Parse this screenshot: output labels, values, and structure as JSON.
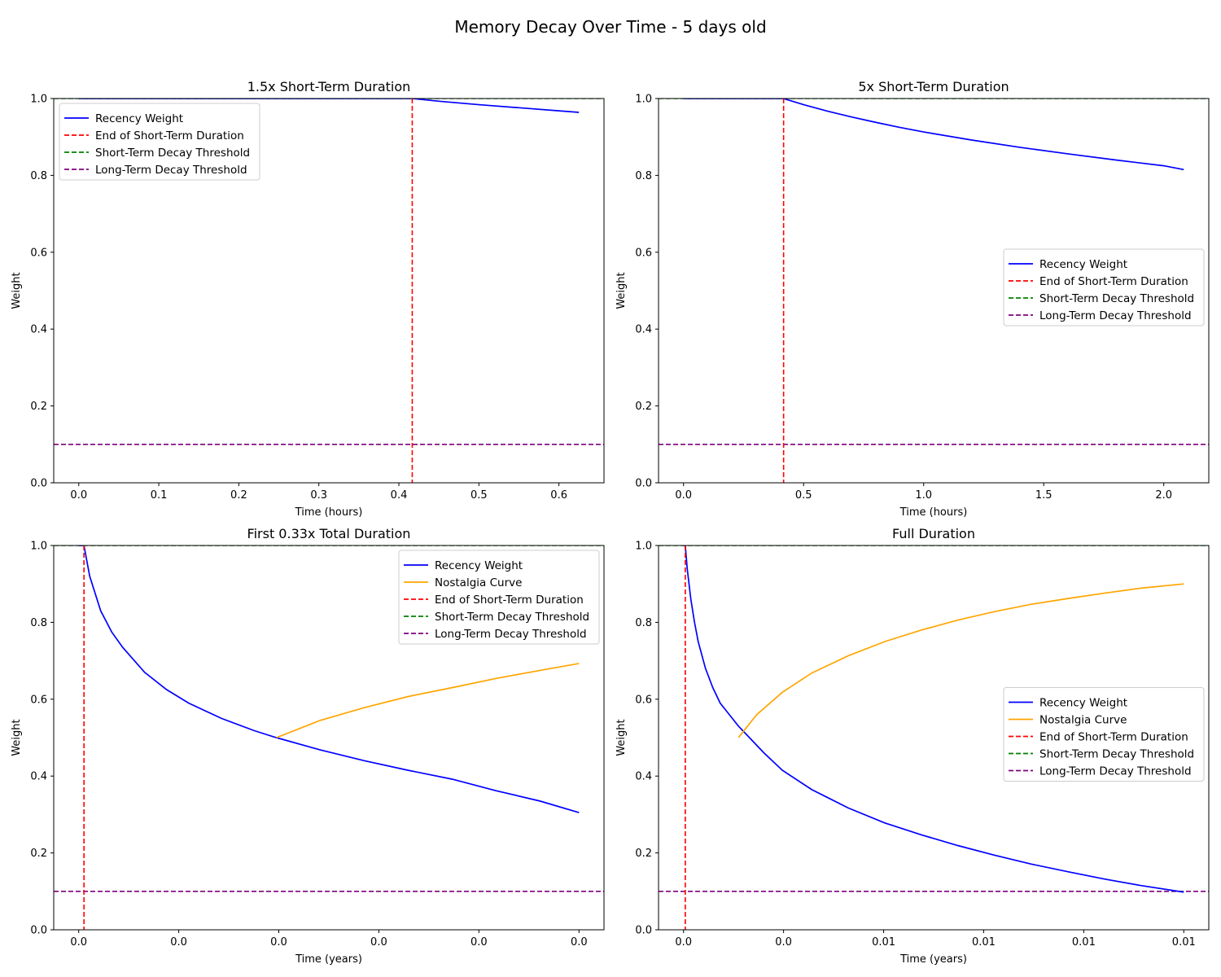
{
  "figure": {
    "title": "Memory Decay Over Time - 5 days old"
  },
  "chart_data": [
    {
      "type": "line",
      "title": "1.5x Short-Term Duration",
      "xlabel": "Time (hours)",
      "ylabel": "Weight",
      "xlim": [
        -0.0313,
        0.6563
      ],
      "ylim": [
        0,
        1
      ],
      "xticks": [
        0,
        0.1,
        0.2,
        0.3,
        0.4,
        0.5,
        0.6
      ],
      "xtick_labels": [
        "0.0",
        "0.1",
        "0.2",
        "0.3",
        "0.4",
        "0.5",
        "0.6"
      ],
      "yticks": [
        0,
        0.2,
        0.4,
        0.6,
        0.8,
        1.0
      ],
      "ytick_labels": [
        "0.0",
        "0.2",
        "0.4",
        "0.6",
        "0.8",
        "1.0"
      ],
      "grid": false,
      "legend_position": "top-left",
      "legend": [
        "Recency Weight",
        "End of Short-Term Duration",
        "Short-Term Decay Threshold",
        "Long-Term Decay Threshold"
      ],
      "series": [
        {
          "name": "Recency Weight",
          "color": "#0000ff",
          "style": "solid",
          "x": [
            0,
            0.1,
            0.2,
            0.3,
            0.4167,
            0.45,
            0.5,
            0.55,
            0.6,
            0.625
          ],
          "y": [
            1,
            1,
            1,
            1,
            1,
            0.993,
            0.984,
            0.976,
            0.968,
            0.964
          ]
        }
      ],
      "vlines": [
        {
          "name": "End of Short-Term Duration",
          "x": 0.4167,
          "color": "#ff0000"
        }
      ],
      "hlines": [
        {
          "name": "Short-Term Decay Threshold",
          "y": 1.0,
          "color": "#008000"
        },
        {
          "name": "Long-Term Decay Threshold",
          "y": 0.1,
          "color": "#800080"
        }
      ]
    },
    {
      "type": "line",
      "title": "5x Short-Term Duration",
      "xlabel": "Time (hours)",
      "ylabel": "Weight",
      "xlim": [
        -0.1042,
        2.1875
      ],
      "ylim": [
        0,
        1
      ],
      "xticks": [
        0,
        0.5,
        1.0,
        1.5,
        2.0
      ],
      "xtick_labels": [
        "0.0",
        "0.5",
        "1.0",
        "1.5",
        "2.0"
      ],
      "yticks": [
        0,
        0.2,
        0.4,
        0.6,
        0.8,
        1.0
      ],
      "ytick_labels": [
        "0.0",
        "0.2",
        "0.4",
        "0.6",
        "0.8",
        "1.0"
      ],
      "grid": false,
      "legend_position": "center-right",
      "legend": [
        "Recency Weight",
        "End of Short-Term Duration",
        "Short-Term Decay Threshold",
        "Long-Term Decay Threshold"
      ],
      "series": [
        {
          "name": "Recency Weight",
          "color": "#0000ff",
          "style": "solid",
          "x": [
            0,
            0.2,
            0.4167,
            0.5,
            0.6,
            0.7,
            0.8,
            0.9,
            1.0,
            1.2,
            1.4,
            1.6,
            1.8,
            2.0,
            2.0833
          ],
          "y": [
            1,
            1,
            1,
            0.984,
            0.967,
            0.952,
            0.938,
            0.925,
            0.913,
            0.892,
            0.873,
            0.856,
            0.84,
            0.825,
            0.815
          ]
        }
      ],
      "vlines": [
        {
          "name": "End of Short-Term Duration",
          "x": 0.4167,
          "color": "#ff0000"
        }
      ],
      "hlines": [
        {
          "name": "Short-Term Decay Threshold",
          "y": 1.0,
          "color": "#008000"
        },
        {
          "name": "Long-Term Decay Threshold",
          "y": 0.1,
          "color": "#800080"
        }
      ]
    },
    {
      "type": "line",
      "title": "First 0.33x Total Duration",
      "xlabel": "Time (years)",
      "ylabel": "Weight",
      "xlim": [
        -0.0002278,
        0.0047834
      ],
      "ylim": [
        0,
        1
      ],
      "xticks": [
        0,
        0.000911,
        0.001822,
        0.002733,
        0.003644,
        0.004556
      ],
      "xtick_labels": [
        "0.0",
        "0.0",
        "0.0",
        "0.0",
        "0.0",
        "0.0"
      ],
      "yticks": [
        0,
        0.2,
        0.4,
        0.6,
        0.8,
        1.0
      ],
      "ytick_labels": [
        "0.0",
        "0.2",
        "0.4",
        "0.6",
        "0.8",
        "1.0"
      ],
      "grid": false,
      "legend_position": "top-right",
      "legend": [
        "Recency Weight",
        "Nostalgia Curve",
        "End of Short-Term Duration",
        "Short-Term Decay Threshold",
        "Long-Term Decay Threshold"
      ],
      "series": [
        {
          "name": "Recency Weight",
          "color": "#0000ff",
          "style": "solid",
          "x": [
            0,
            4.76e-05,
            0.0001,
            0.0002,
            0.0003,
            0.0004,
            0.0006,
            0.0008,
            0.001,
            0.0013,
            0.0016,
            0.0018,
            0.0022,
            0.0026,
            0.003,
            0.0034,
            0.0038,
            0.0042,
            0.004556
          ],
          "y": [
            1,
            1,
            0.92,
            0.83,
            0.775,
            0.735,
            0.67,
            0.625,
            0.59,
            0.55,
            0.518,
            0.5,
            0.468,
            0.44,
            0.415,
            0.392,
            0.362,
            0.335,
            0.305
          ]
        },
        {
          "name": "Nostalgia Curve",
          "color": "#ffa500",
          "style": "solid",
          "x": [
            0.0018,
            0.0022,
            0.0026,
            0.003,
            0.0034,
            0.0038,
            0.0042,
            0.004556
          ],
          "y": [
            0.5,
            0.545,
            0.578,
            0.607,
            0.63,
            0.654,
            0.675,
            0.693
          ]
        }
      ],
      "vlines": [
        {
          "name": "End of Short-Term Duration",
          "x": 4.76e-05,
          "color": "#ff0000"
        }
      ],
      "hlines": [
        {
          "name": "Short-Term Decay Threshold",
          "y": 1.0,
          "color": "#008000"
        },
        {
          "name": "Long-Term Decay Threshold",
          "y": 0.1,
          "color": "#800080"
        }
      ]
    },
    {
      "type": "line",
      "title": "Full Duration",
      "xlabel": "Time (years)",
      "ylabel": "Weight",
      "xlim": [
        -0.0006834,
        0.0143503
      ],
      "ylim": [
        0,
        1
      ],
      "xticks": [
        0,
        0.002733,
        0.005467,
        0.0082,
        0.010934,
        0.013667
      ],
      "xtick_labels": [
        "0.0",
        "0.0",
        "0.01",
        "0.01",
        "0.01",
        "0.01"
      ],
      "yticks": [
        0,
        0.2,
        0.4,
        0.6,
        0.8,
        1.0
      ],
      "ytick_labels": [
        "0.0",
        "0.2",
        "0.4",
        "0.6",
        "0.8",
        "1.0"
      ],
      "grid": false,
      "legend_position": "center-right",
      "legend": [
        "Recency Weight",
        "Nostalgia Curve",
        "End of Short-Term Duration",
        "Short-Term Decay Threshold",
        "Long-Term Decay Threshold"
      ],
      "series": [
        {
          "name": "Recency Weight",
          "color": "#0000ff",
          "style": "solid",
          "x": [
            0,
            4.76e-05,
            0.0001,
            0.0002,
            0.0003,
            0.0004,
            0.0006,
            0.0008,
            0.001,
            0.0015,
            0.0018,
            0.0022,
            0.0027,
            0.0035,
            0.0045,
            0.0055,
            0.0065,
            0.0075,
            0.0085,
            0.0095,
            0.0105,
            0.0115,
            0.0125,
            0.013667
          ],
          "y": [
            1,
            1,
            0.94,
            0.86,
            0.8,
            0.75,
            0.68,
            0.63,
            0.59,
            0.53,
            0.5,
            0.46,
            0.415,
            0.365,
            0.317,
            0.278,
            0.247,
            0.219,
            0.194,
            0.171,
            0.151,
            0.132,
            0.115,
            0.098
          ]
        },
        {
          "name": "Nostalgia Curve",
          "color": "#ffa500",
          "style": "solid",
          "x": [
            0.0015,
            0.002,
            0.0027,
            0.0035,
            0.0045,
            0.0055,
            0.0065,
            0.0075,
            0.0085,
            0.0095,
            0.0105,
            0.0115,
            0.0125,
            0.013667
          ],
          "y": [
            0.5,
            0.56,
            0.618,
            0.668,
            0.713,
            0.75,
            0.78,
            0.806,
            0.828,
            0.847,
            0.862,
            0.876,
            0.889,
            0.9
          ]
        }
      ],
      "vlines": [
        {
          "name": "End of Short-Term Duration",
          "x": 4.76e-05,
          "color": "#ff0000"
        }
      ],
      "hlines": [
        {
          "name": "Short-Term Decay Threshold",
          "y": 1.0,
          "color": "#008000"
        },
        {
          "name": "Long-Term Decay Threshold",
          "y": 0.1,
          "color": "#800080"
        }
      ]
    }
  ]
}
